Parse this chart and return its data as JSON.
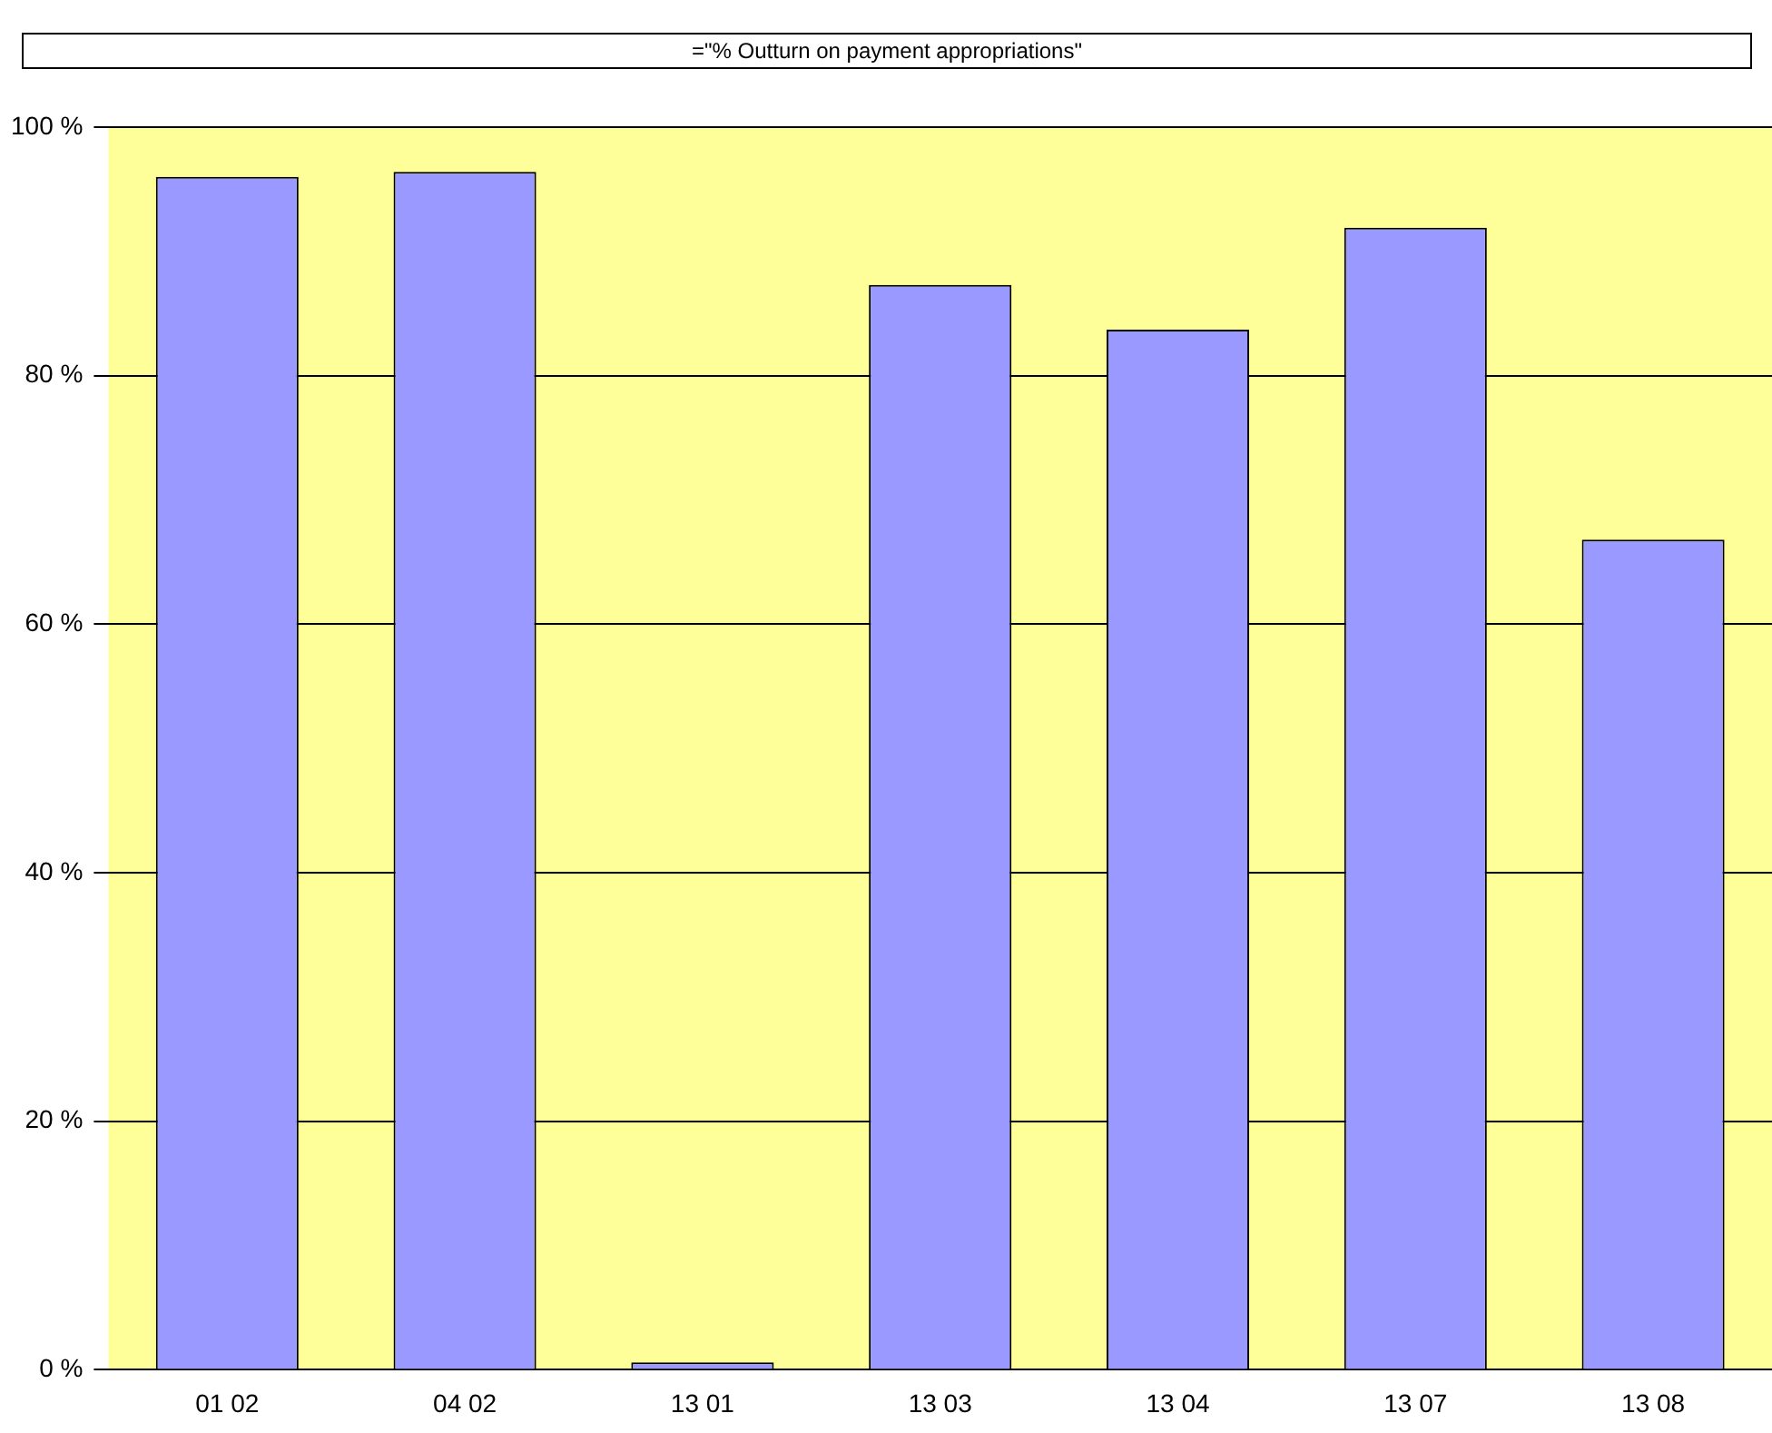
{
  "chart_data": {
    "type": "bar",
    "title": "=\"% Outturn on payment appropriations\"",
    "categories": [
      "01 02",
      "04 02",
      "13 01",
      "13 03",
      "13 04",
      "13 07",
      "13 08"
    ],
    "values": [
      96,
      96.4,
      0.6,
      87.3,
      83.7,
      91.9,
      66.8
    ],
    "color": "#9999ff",
    "ylim": [
      0,
      100
    ],
    "yticks": [
      {
        "value": 0,
        "label": "0 %"
      },
      {
        "value": 20,
        "label": "20 %"
      },
      {
        "value": 40,
        "label": "40 %"
      },
      {
        "value": 60,
        "label": "60 %"
      },
      {
        "value": 80,
        "label": "80 %"
      },
      {
        "value": 100,
        "label": "100 %"
      }
    ],
    "grid": "y",
    "legend": false
  }
}
